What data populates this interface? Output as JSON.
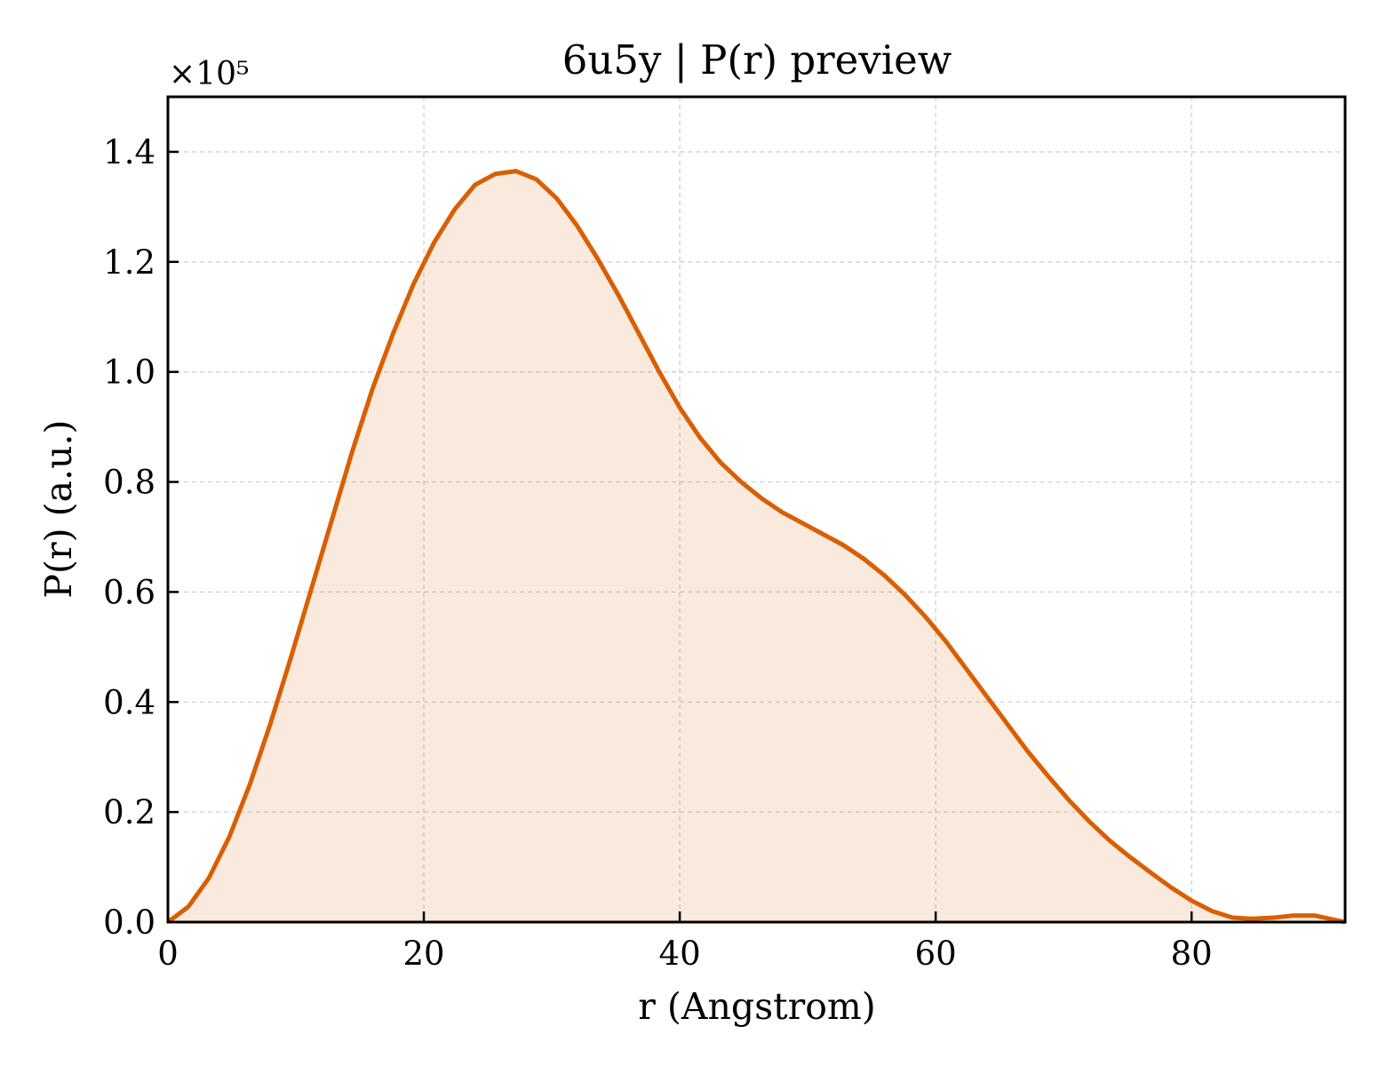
{
  "chart_data": {
    "type": "area",
    "title": "6u5y | P(r) preview",
    "xlabel": "r (Angstrom)",
    "ylabel": "P(r) (a.u.)",
    "y_offset_label": "×10⁵",
    "xlim": [
      0,
      92
    ],
    "ylim": [
      0,
      1.5
    ],
    "y_scale_factor": 100000,
    "xticks": [
      0,
      20,
      40,
      60,
      80
    ],
    "xtick_labels": [
      "0",
      "20",
      "40",
      "60",
      "80"
    ],
    "yticks": [
      0.0,
      0.2,
      0.4,
      0.6,
      0.8,
      1.0,
      1.2,
      1.4
    ],
    "ytick_labels": [
      "0.0",
      "0.2",
      "0.4",
      "0.6",
      "0.8",
      "1.0",
      "1.2",
      "1.4"
    ],
    "grid": true,
    "legend": false,
    "line_color": "#d95f02",
    "fill_color": "#d95f02",
    "series": [
      {
        "x": [
          0,
          1.6,
          3.2,
          4.8,
          6.4,
          8.0,
          9.6,
          11.2,
          12.8,
          14.4,
          16.0,
          17.6,
          19.2,
          20.8,
          22.4,
          24.0,
          25.6,
          27.2,
          28.8,
          30.4,
          32.0,
          33.6,
          35.2,
          36.8,
          38.4,
          40.0,
          41.6,
          43.2,
          44.8,
          46.4,
          48.0,
          49.6,
          51.2,
          52.8,
          54.4,
          56.0,
          57.6,
          59.2,
          60.8,
          62.4,
          64.0,
          65.6,
          67.2,
          68.8,
          70.4,
          72.0,
          73.6,
          75.2,
          76.8,
          78.4,
          80.0,
          81.6,
          83.2,
          84.8,
          86.4,
          88.0,
          89.6,
          91.2,
          92.0
        ],
        "y": [
          0.0,
          0.028,
          0.08,
          0.155,
          0.25,
          0.36,
          0.48,
          0.605,
          0.73,
          0.855,
          0.97,
          1.07,
          1.16,
          1.235,
          1.295,
          1.34,
          1.36,
          1.365,
          1.35,
          1.315,
          1.265,
          1.205,
          1.14,
          1.07,
          1.0,
          0.935,
          0.88,
          0.835,
          0.8,
          0.77,
          0.745,
          0.725,
          0.705,
          0.685,
          0.66,
          0.63,
          0.595,
          0.555,
          0.51,
          0.46,
          0.41,
          0.36,
          0.31,
          0.265,
          0.222,
          0.183,
          0.148,
          0.118,
          0.09,
          0.063,
          0.039,
          0.02,
          0.008,
          0.006,
          0.008,
          0.012,
          0.012,
          0.004,
          0.0
        ]
      }
    ]
  }
}
